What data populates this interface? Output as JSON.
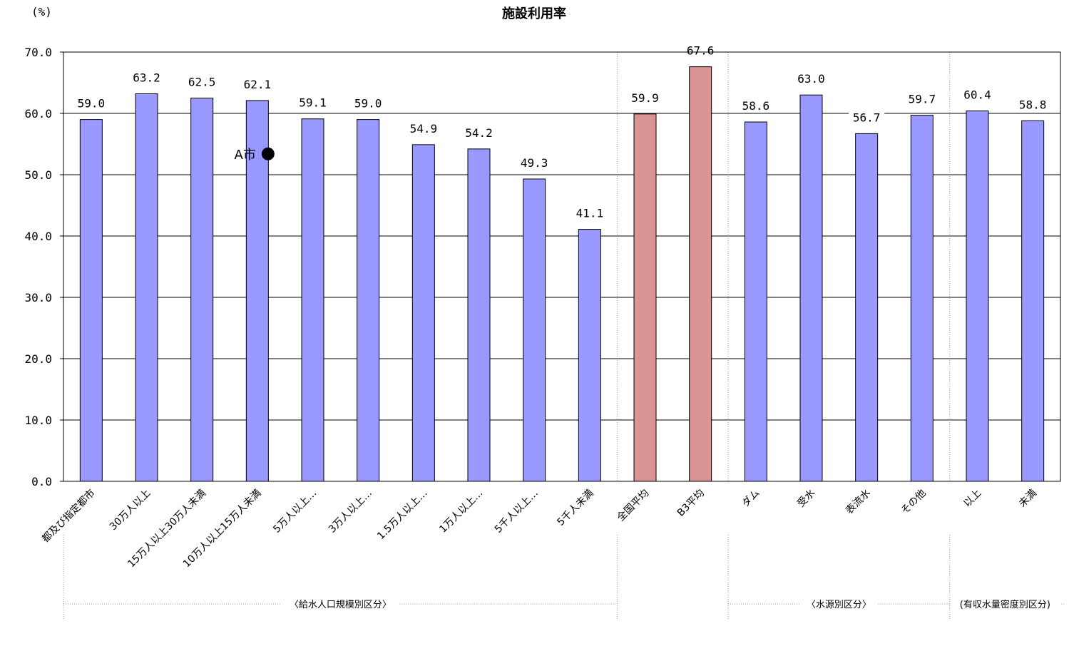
{
  "chart_data": {
    "type": "bar",
    "title": "施設利用率",
    "unit_label": "(%)",
    "ylim": [
      0,
      70
    ],
    "yticks": [
      "0.0",
      "10.0",
      "20.0",
      "30.0",
      "40.0",
      "50.0",
      "60.0",
      "70.0"
    ],
    "grid": true,
    "categories": [
      "都及び指定都市",
      "30万人以上",
      "15万人以上30万人未満",
      "10万人以上15万人未満",
      "5万人以上…",
      "3万人以上…",
      "1.5万人以上…",
      "1万人以上…",
      "5千人以上…",
      "5千人未満",
      "全国平均",
      "B3平均",
      "ダム",
      "受水",
      "表流水",
      "その他",
      "以上",
      "未満"
    ],
    "values": [
      59.0,
      63.2,
      62.5,
      62.1,
      59.1,
      59.0,
      54.9,
      54.2,
      49.3,
      41.1,
      59.9,
      67.6,
      58.6,
      63.0,
      56.7,
      59.7,
      60.4,
      58.8
    ],
    "value_labels": [
      "59.0",
      "63.2",
      "62.5",
      "62.1",
      "59.1",
      "59.0",
      "54.9",
      "54.2",
      "49.3",
      "41.1",
      "59.9",
      "67.6",
      "58.6",
      "63.0",
      "56.7",
      "59.7",
      "60.4",
      "58.8"
    ],
    "bar_colors": [
      "#9999ff",
      "#9999ff",
      "#9999ff",
      "#9999ff",
      "#9999ff",
      "#9999ff",
      "#9999ff",
      "#9999ff",
      "#9999ff",
      "#9999ff",
      "#d99594",
      "#d99594",
      "#9999ff",
      "#9999ff",
      "#9999ff",
      "#9999ff",
      "#9999ff",
      "#9999ff"
    ],
    "groups": [
      {
        "label": "〈給水人口規模別区分〉",
        "first": 0,
        "last": 9
      },
      {
        "label": "〈水源別区分〉",
        "first": 12,
        "last": 15
      },
      {
        "label": "(有収水量密度別区分)",
        "first": 16,
        "last": 17
      }
    ],
    "marker": {
      "label": "A市",
      "category_index": 3,
      "value": 53.4,
      "symbol": "●"
    }
  }
}
